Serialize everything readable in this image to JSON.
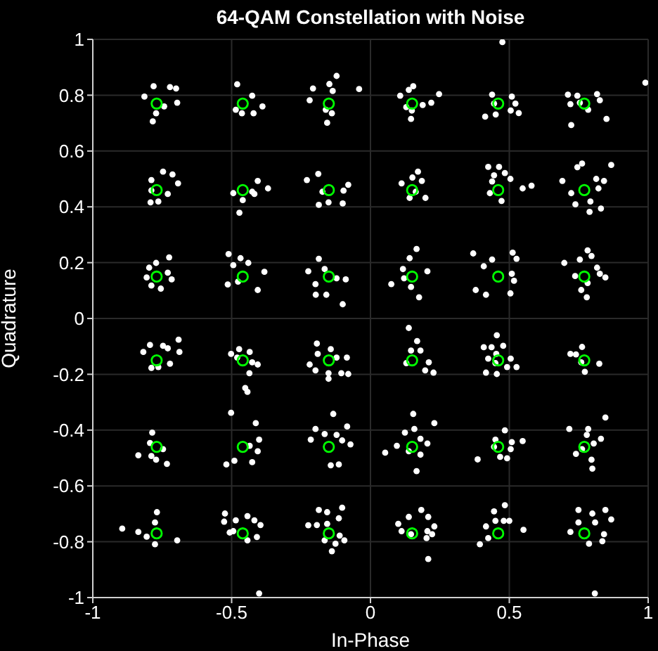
{
  "chart_data": {
    "type": "scatter",
    "title": "64-QAM Constellation with Noise",
    "xlabel": "In-Phase",
    "ylabel": "Quadrature",
    "xlim": [
      -1,
      1
    ],
    "ylim": [
      -1,
      1
    ],
    "xticks": [
      -1,
      -0.5,
      0,
      0.5,
      1
    ],
    "yticks": [
      -1,
      -0.8,
      -0.6,
      -0.4,
      -0.2,
      0,
      0.2,
      0.4,
      0.6,
      0.8,
      1
    ],
    "grid": true,
    "marker": "circle",
    "series": [
      {
        "color": "#ffffff",
        "x": [
          -0.781,
          -0.722,
          -0.7,
          -0.814,
          -0.743,
          -0.696,
          -0.772,
          -0.784,
          -0.48,
          -0.426,
          -0.485,
          -0.463,
          -0.421,
          -0.389,
          -0.122,
          -0.148,
          -0.207,
          -0.136,
          -0.041,
          -0.219,
          -0.161,
          -0.139,
          -0.156,
          -0.747,
          -0.713,
          -0.789,
          -0.693,
          -0.789,
          -0.73,
          -0.792,
          -0.764,
          -0.406,
          -0.369,
          -0.494,
          -0.426,
          -0.46,
          -0.472,
          -0.418,
          -0.188,
          -0.229,
          -0.08,
          -0.173,
          -0.097,
          -0.186,
          -0.151,
          -0.1,
          -0.725,
          -0.772,
          -0.797,
          -0.73,
          -0.806,
          -0.716,
          -0.789,
          -0.755,
          -0.511,
          -0.468,
          -0.44,
          -0.494,
          -0.382,
          -0.477,
          -0.514,
          -0.406,
          -0.186,
          -0.224,
          -0.165,
          -0.198,
          -0.122,
          -0.089,
          -0.197,
          -0.159,
          -0.1,
          0.154,
          0.138,
          0.247,
          0.107,
          0.219,
          0.129,
          0.188,
          0.149,
          0.146,
          0.438,
          0.509,
          0.522,
          0.445,
          0.505,
          0.534,
          0.451,
          0.413,
          0.711,
          0.745,
          0.816,
          0.826,
          0.72,
          0.754,
          0.784,
          0.85,
          0.723,
          0.99,
          0.475,
          0.171,
          0.151,
          0.185,
          0.112,
          0.163,
          0.141,
          0.198,
          0.424,
          0.463,
          0.445,
          0.484,
          0.504,
          0.438,
          0.548,
          0.58,
          0.43,
          0.472,
          0.762,
          0.867,
          0.745,
          0.691,
          0.813,
          0.841,
          0.723,
          0.821,
          0.738,
          0.792,
          0.83,
          0.789,
          0.166,
          0.141,
          0.117,
          0.205,
          0.121,
          0.146,
          0.175,
          0.075,
          0.37,
          0.512,
          0.438,
          0.526,
          0.408,
          0.509,
          0.517,
          0.379,
          0.416,
          0.504,
          0.782,
          0.796,
          0.754,
          0.698,
          0.816,
          0.737,
          0.826,
          0.846,
          0.782,
          0.759,
          0.779,
          -0.691,
          -0.794,
          -0.747,
          -0.818,
          -0.688,
          -0.73,
          -0.722,
          -0.789,
          -0.764,
          -0.473,
          -0.435,
          -0.502,
          -0.48,
          -0.426,
          -0.406,
          -0.436,
          -0.451,
          -0.443,
          -0.193,
          -0.143,
          -0.19,
          -0.122,
          -0.085,
          -0.219,
          -0.198,
          -0.151,
          -0.105,
          -0.08,
          -0.151,
          -0.786,
          -0.794,
          -0.747,
          -0.836,
          -0.789,
          -0.772,
          -0.733,
          -0.502,
          -0.413,
          -0.401,
          -0.435,
          -0.406,
          -0.49,
          -0.519,
          -0.426,
          -0.134,
          -0.198,
          -0.084,
          -0.165,
          -0.122,
          -0.215,
          -0.102,
          -0.072,
          -0.143,
          -0.114,
          -0.769,
          -0.776,
          -0.894,
          -0.836,
          -0.806,
          -0.696,
          -0.776,
          -0.524,
          -0.443,
          -0.527,
          -0.418,
          -0.485,
          -0.396,
          -0.494,
          -0.409,
          -0.443,
          -0.507,
          -0.186,
          -0.102,
          -0.156,
          -0.114,
          -0.224,
          -0.193,
          -0.156,
          -0.111,
          -0.165,
          -0.094,
          -0.126,
          -0.139,
          -0.401,
          0.138,
          0.168,
          0.146,
          0.18,
          0.129,
          0.21,
          0.197,
          0.227,
          0.455,
          0.408,
          0.436,
          0.478,
          0.453,
          0.424,
          0.505,
          0.45,
          0.492,
          0.526,
          0.416,
          0.455,
          0.762,
          0.72,
          0.74,
          0.759,
          0.824,
          0.772,
          0.154,
          0.23,
          0.158,
          0.124,
          0.18,
          0.205,
          0.095,
          0.138,
          0.18,
          0.053,
          0.166,
          0.484,
          0.45,
          0.509,
          0.548,
          0.445,
          0.505,
          0.467,
          0.492,
          0.386,
          0.846,
          0.716,
          0.784,
          0.779,
          0.83,
          0.804,
          0.762,
          0.74,
          0.796,
          0.799,
          0.138,
          0.183,
          0.208,
          0.1,
          0.23,
          0.112,
          0.146,
          0.205,
          0.222,
          0.202,
          0.208,
          0.484,
          0.445,
          0.45,
          0.48,
          0.5,
          0.416,
          0.551,
          0.424,
          0.394,
          0.749,
          0.846,
          0.799,
          0.867,
          0.749,
          0.809,
          0.72,
          0.841,
          0.835,
          0.787,
          0.808
        ],
        "values": [
          0.832,
          0.829,
          0.824,
          0.795,
          0.76,
          0.773,
          0.735,
          0.706,
          0.839,
          0.798,
          0.748,
          0.735,
          0.735,
          0.76,
          0.869,
          0.84,
          0.824,
          0.815,
          0.822,
          0.782,
          0.748,
          0.735,
          0.701,
          0.526,
          0.516,
          0.496,
          0.484,
          0.459,
          0.446,
          0.416,
          0.419,
          0.493,
          0.466,
          0.449,
          0.454,
          0.424,
          0.379,
          0.446,
          0.518,
          0.496,
          0.479,
          0.454,
          0.458,
          0.407,
          0.416,
          0.412,
          0.219,
          0.199,
          0.182,
          0.164,
          0.147,
          0.14,
          0.118,
          0.107,
          0.231,
          0.216,
          0.199,
          0.191,
          0.167,
          0.132,
          0.122,
          0.102,
          0.214,
          0.169,
          0.177,
          0.123,
          0.144,
          0.14,
          0.085,
          0.085,
          0.051,
          0.832,
          0.819,
          0.804,
          0.798,
          0.773,
          0.757,
          0.765,
          0.745,
          0.715,
          0.802,
          0.795,
          0.77,
          0.77,
          0.745,
          0.736,
          0.731,
          0.723,
          0.802,
          0.798,
          0.804,
          0.782,
          0.768,
          0.773,
          0.748,
          0.715,
          0.693,
          0.845,
          0.99,
          0.526,
          0.505,
          0.493,
          0.484,
          0.454,
          0.432,
          0.432,
          0.543,
          0.543,
          0.513,
          0.521,
          0.5,
          0.491,
          0.466,
          0.476,
          0.449,
          0.421,
          0.555,
          0.55,
          0.542,
          0.493,
          0.5,
          0.493,
          0.449,
          0.466,
          0.409,
          0.419,
          0.394,
          0.382,
          0.249,
          0.216,
          0.177,
          0.169,
          0.144,
          0.113,
          0.076,
          0.123,
          0.233,
          0.236,
          0.211,
          0.214,
          0.187,
          0.16,
          0.135,
          0.102,
          0.085,
          0.09,
          0.244,
          0.224,
          0.211,
          0.199,
          0.182,
          0.152,
          0.16,
          0.147,
          0.127,
          0.102,
          0.076,
          -0.076,
          -0.095,
          -0.098,
          -0.12,
          -0.12,
          -0.107,
          -0.162,
          -0.177,
          -0.174,
          -0.11,
          -0.12,
          -0.127,
          -0.14,
          -0.157,
          -0.165,
          -0.196,
          -0.249,
          -0.263,
          -0.09,
          -0.11,
          -0.127,
          -0.14,
          -0.14,
          -0.165,
          -0.186,
          -0.196,
          -0.196,
          -0.199,
          -0.216,
          -0.409,
          -0.446,
          -0.468,
          -0.49,
          -0.493,
          -0.506,
          -0.521,
          -0.338,
          -0.375,
          -0.434,
          -0.456,
          -0.476,
          -0.51,
          -0.523,
          -0.515,
          -0.342,
          -0.396,
          -0.387,
          -0.414,
          -0.417,
          -0.434,
          -0.437,
          -0.451,
          -0.526,
          -0.523,
          -0.694,
          -0.731,
          -0.753,
          -0.765,
          -0.782,
          -0.795,
          -0.809,
          -0.699,
          -0.708,
          -0.728,
          -0.723,
          -0.723,
          -0.74,
          -0.762,
          -0.783,
          -0.795,
          -0.767,
          -0.686,
          -0.678,
          -0.694,
          -0.716,
          -0.741,
          -0.74,
          -0.736,
          -0.778,
          -0.795,
          -0.795,
          -0.807,
          -0.834,
          -0.985,
          -0.034,
          -0.081,
          -0.115,
          -0.115,
          -0.16,
          -0.157,
          -0.186,
          -0.194,
          -0.06,
          -0.103,
          -0.103,
          -0.098,
          -0.127,
          -0.144,
          -0.144,
          -0.16,
          -0.174,
          -0.174,
          -0.194,
          -0.199,
          -0.102,
          -0.127,
          -0.129,
          -0.157,
          -0.162,
          -0.191,
          -0.342,
          -0.375,
          -0.396,
          -0.409,
          -0.431,
          -0.448,
          -0.456,
          -0.476,
          -0.488,
          -0.481,
          -0.547,
          -0.401,
          -0.434,
          -0.443,
          -0.439,
          -0.46,
          -0.468,
          -0.496,
          -0.501,
          -0.505,
          -0.355,
          -0.396,
          -0.396,
          -0.417,
          -0.431,
          -0.448,
          -0.468,
          -0.485,
          -0.506,
          -0.538,
          -0.711,
          -0.686,
          -0.711,
          -0.736,
          -0.745,
          -0.762,
          -0.773,
          -0.762,
          -0.773,
          -0.787,
          -0.862,
          -0.669,
          -0.691,
          -0.725,
          -0.725,
          -0.725,
          -0.745,
          -0.757,
          -0.787,
          -0.809,
          -0.686,
          -0.686,
          -0.699,
          -0.72,
          -0.731,
          -0.731,
          -0.765,
          -0.773,
          -0.798,
          -0.807,
          -0.985
        ]
      },
      {
        "color": "#00ff00",
        "marker": "circle",
        "x": [
          -0.77,
          -0.46,
          -0.15,
          0.15,
          0.46,
          0.77,
          -0.77,
          -0.46,
          -0.15,
          0.15,
          0.46,
          0.77,
          -0.77,
          -0.46,
          -0.15,
          0.15,
          0.46,
          0.77,
          -0.77,
          -0.46,
          -0.15,
          0.15,
          0.46,
          0.77,
          -0.77,
          -0.46,
          -0.15,
          0.15,
          0.46,
          0.77,
          -0.77,
          -0.46,
          -0.15,
          0.15,
          0.46,
          0.77
        ],
        "values": [
          0.77,
          0.77,
          0.77,
          0.77,
          0.77,
          0.77,
          0.46,
          0.46,
          0.46,
          0.46,
          0.46,
          0.46,
          0.15,
          0.15,
          0.15,
          0.15,
          0.15,
          0.15,
          -0.15,
          -0.15,
          -0.15,
          -0.15,
          -0.15,
          -0.15,
          -0.46,
          -0.46,
          -0.46,
          -0.46,
          -0.46,
          -0.46,
          -0.77,
          -0.77,
          -0.77,
          -0.77,
          -0.77,
          -0.77
        ]
      }
    ]
  }
}
